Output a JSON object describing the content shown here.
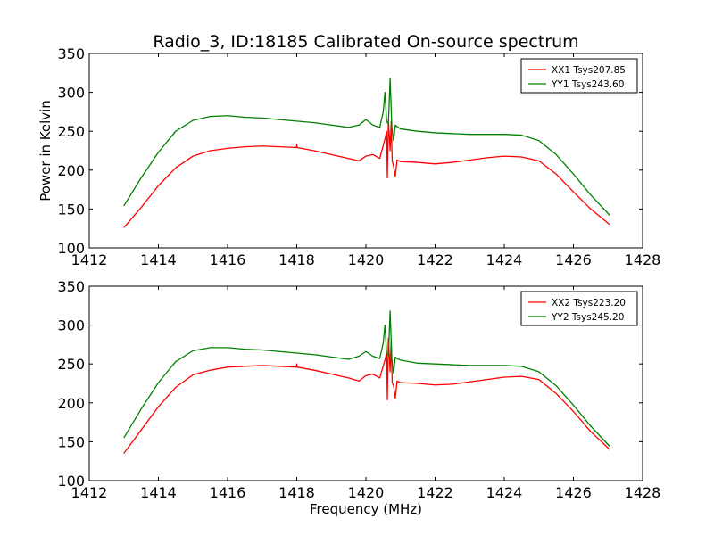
{
  "title": "Radio_3, ID:18185 Calibrated On-source spectrum",
  "xlabel": "Frequency (MHz)",
  "ylabel": "Power in Kelvin",
  "colors": {
    "xx": "#ff0000",
    "yy": "#008000"
  },
  "chart_data": [
    {
      "type": "line",
      "xlim": [
        1412,
        1428
      ],
      "ylim": [
        100,
        350
      ],
      "xticks": [
        1412,
        1414,
        1416,
        1418,
        1420,
        1422,
        1424,
        1426,
        1428
      ],
      "yticks": [
        100,
        150,
        200,
        250,
        300,
        350
      ],
      "ylabel": "Power in Kelvin",
      "xlabel": "",
      "legend_position": "top-right",
      "series": [
        {
          "name": "XX1 Tsys207.85",
          "color": "#ff0000",
          "x": [
            1413.0,
            1413.5,
            1414.0,
            1414.5,
            1415.0,
            1415.5,
            1416.0,
            1416.5,
            1417.0,
            1417.5,
            1417.99,
            1418.0,
            1418.01,
            1418.5,
            1419.0,
            1419.5,
            1419.8,
            1420.0,
            1420.2,
            1420.4,
            1420.55,
            1420.6,
            1420.62,
            1420.65,
            1420.7,
            1420.73,
            1420.76,
            1420.8,
            1420.85,
            1420.9,
            1421.0,
            1421.5,
            1422.0,
            1422.5,
            1423.0,
            1423.5,
            1424.0,
            1424.5,
            1425.0,
            1425.5,
            1426.0,
            1426.5,
            1427.05
          ],
          "y": [
            126,
            152,
            180,
            203,
            218,
            225,
            228,
            230,
            231,
            230,
            229,
            233,
            229,
            225,
            220,
            215,
            212,
            218,
            220,
            215,
            240,
            250,
            190,
            265,
            225,
            263,
            212,
            205,
            192,
            213,
            211,
            210,
            208,
            210,
            213,
            216,
            218,
            217,
            212,
            195,
            172,
            150,
            130
          ]
        },
        {
          "name": "YY1 Tsys243.60",
          "color": "#008000",
          "x": [
            1413.0,
            1413.5,
            1414.0,
            1414.5,
            1415.0,
            1415.5,
            1416.0,
            1416.5,
            1417.0,
            1417.5,
            1418.0,
            1418.5,
            1419.0,
            1419.5,
            1419.8,
            1420.0,
            1420.2,
            1420.4,
            1420.5,
            1420.55,
            1420.6,
            1420.65,
            1420.7,
            1420.75,
            1420.8,
            1420.85,
            1420.9,
            1421.0,
            1421.5,
            1422.0,
            1422.5,
            1423.0,
            1423.5,
            1424.0,
            1424.5,
            1425.0,
            1425.5,
            1426.0,
            1426.5,
            1427.05
          ],
          "y": [
            154,
            190,
            223,
            250,
            264,
            269,
            270,
            268,
            267,
            265,
            263,
            261,
            258,
            255,
            258,
            265,
            258,
            255,
            275,
            300,
            262,
            260,
            318,
            255,
            238,
            258,
            256,
            253,
            250,
            248,
            247,
            246,
            246,
            246,
            245,
            238,
            220,
            195,
            168,
            142
          ]
        }
      ]
    },
    {
      "type": "line",
      "xlim": [
        1412,
        1428
      ],
      "ylim": [
        100,
        350
      ],
      "xticks": [
        1412,
        1414,
        1416,
        1418,
        1420,
        1422,
        1424,
        1426,
        1428
      ],
      "yticks": [
        100,
        150,
        200,
        250,
        300,
        350
      ],
      "xlabel": "Frequency (MHz)",
      "ylabel": "",
      "legend_position": "top-right",
      "series": [
        {
          "name": "XX2 Tsys223.20",
          "color": "#ff0000",
          "x": [
            1413.0,
            1413.5,
            1414.0,
            1414.5,
            1415.0,
            1415.5,
            1416.0,
            1416.5,
            1417.0,
            1417.5,
            1417.99,
            1418.0,
            1418.01,
            1418.5,
            1419.0,
            1419.5,
            1419.8,
            1420.0,
            1420.2,
            1420.4,
            1420.55,
            1420.6,
            1420.62,
            1420.65,
            1420.7,
            1420.73,
            1420.76,
            1420.8,
            1420.85,
            1420.9,
            1421.0,
            1421.5,
            1422.0,
            1422.5,
            1423.0,
            1423.5,
            1424.0,
            1424.5,
            1425.0,
            1425.5,
            1426.0,
            1426.5,
            1427.05
          ],
          "y": [
            135,
            165,
            195,
            220,
            236,
            242,
            246,
            247,
            248,
            247,
            246,
            250,
            246,
            242,
            237,
            232,
            228,
            235,
            237,
            232,
            255,
            265,
            204,
            283,
            240,
            280,
            226,
            222,
            206,
            228,
            226,
            225,
            223,
            224,
            227,
            230,
            233,
            234,
            230,
            212,
            189,
            163,
            140
          ]
        },
        {
          "name": "YY2 Tsys245.20",
          "color": "#008000",
          "x": [
            1413.0,
            1413.5,
            1414.0,
            1414.5,
            1415.0,
            1415.5,
            1416.0,
            1416.5,
            1417.0,
            1417.5,
            1418.0,
            1418.5,
            1419.0,
            1419.5,
            1419.8,
            1420.0,
            1420.2,
            1420.4,
            1420.5,
            1420.55,
            1420.6,
            1420.65,
            1420.7,
            1420.75,
            1420.8,
            1420.85,
            1420.9,
            1421.0,
            1421.5,
            1422.0,
            1422.5,
            1423.0,
            1423.5,
            1424.0,
            1424.5,
            1425.0,
            1425.5,
            1426.0,
            1426.5,
            1427.05
          ],
          "y": [
            155,
            192,
            226,
            253,
            267,
            271,
            271,
            269,
            268,
            266,
            264,
            262,
            259,
            256,
            260,
            266,
            260,
            257,
            277,
            300,
            263,
            261,
            318,
            256,
            238,
            259,
            257,
            255,
            251,
            250,
            249,
            248,
            248,
            248,
            247,
            240,
            222,
            197,
            170,
            144
          ]
        }
      ]
    }
  ]
}
